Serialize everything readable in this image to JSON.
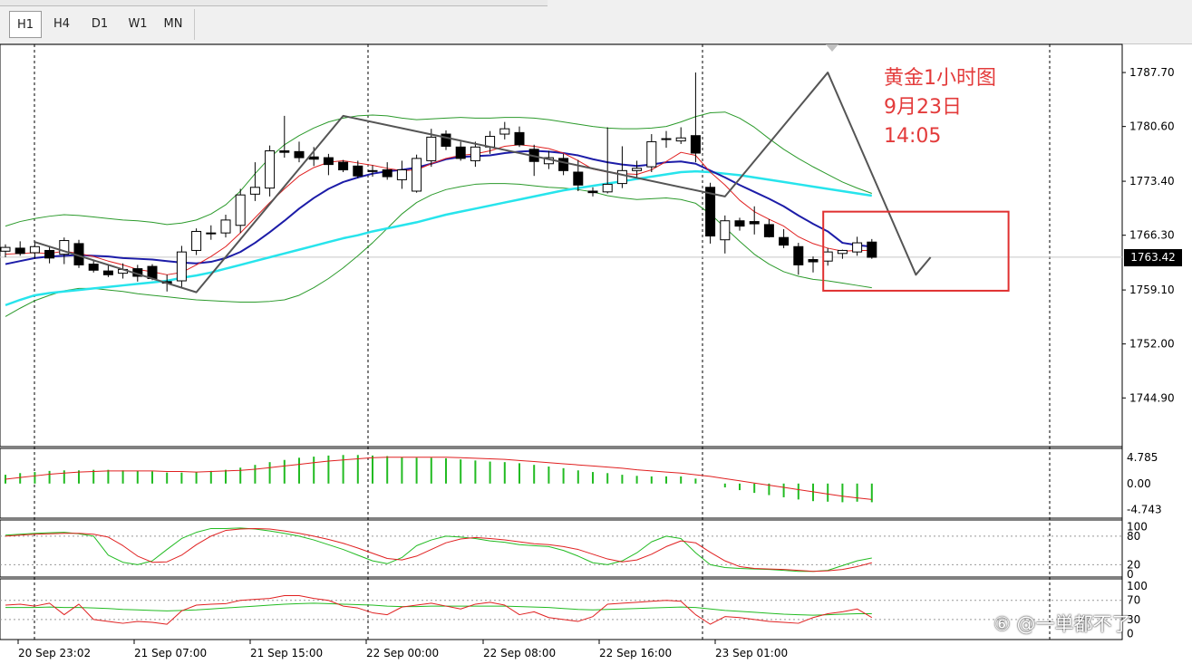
{
  "toolbar": {
    "timeframes": [
      "H1",
      "H4",
      "D1",
      "W1",
      "MN"
    ],
    "active_index": 0
  },
  "annotation": {
    "line1": "黄金1小时图",
    "line2": "9月23日",
    "line3": "14:05",
    "color": "#e33b3b"
  },
  "watermark": "⑥ @一単都不了",
  "colors": {
    "ma_fast": "#e02020",
    "ma_slow": "#1c1ca8",
    "ma_long": "#27e4ec",
    "bands": "#2b9a2b",
    "zigzag": "#555555",
    "macd_bar": "#22bb22",
    "box": "#e03030"
  },
  "chart_data": [
    {
      "type": "candlestick",
      "name": "main",
      "y_axis_ticks": [
        "1787.70",
        "1780.60",
        "1773.40",
        "1766.30",
        "1759.10",
        "1752.00",
        "1744.90"
      ],
      "ylim": [
        1738.5,
        1791.4
      ],
      "current_price": "1763.42",
      "x_labels": [
        "20 Sep 23:02",
        "21 Sep 07:00",
        "21 Sep 15:00",
        "22 Sep 00:00",
        "22 Sep 08:00",
        "22 Sep 16:00",
        "23 Sep 01:00"
      ],
      "ohlc": [
        [
          1764.2,
          1765.1,
          1763.4,
          1764.7
        ],
        [
          1764.6,
          1765.5,
          1763.6,
          1763.9
        ],
        [
          1764.0,
          1765.4,
          1763.2,
          1764.8
        ],
        [
          1764.3,
          1764.8,
          1762.6,
          1763.3
        ],
        [
          1763.8,
          1766.0,
          1762.5,
          1765.6
        ],
        [
          1765.2,
          1765.7,
          1762.0,
          1762.4
        ],
        [
          1762.5,
          1763.1,
          1761.4,
          1761.7
        ],
        [
          1761.6,
          1762.4,
          1760.8,
          1761.1
        ],
        [
          1761.3,
          1762.6,
          1760.6,
          1761.8
        ],
        [
          1761.9,
          1762.4,
          1760.2,
          1760.9
        ],
        [
          1762.2,
          1762.5,
          1760.4,
          1760.6
        ],
        [
          1760.2,
          1761.1,
          1758.9,
          1760.0
        ],
        [
          1760.3,
          1764.9,
          1759.3,
          1764.1
        ],
        [
          1764.3,
          1767.2,
          1763.7,
          1766.8
        ],
        [
          1766.5,
          1767.6,
          1765.7,
          1766.6
        ],
        [
          1766.6,
          1769.0,
          1766.0,
          1768.3
        ],
        [
          1767.6,
          1772.4,
          1766.6,
          1771.6
        ],
        [
          1771.7,
          1775.9,
          1770.8,
          1772.6
        ],
        [
          1772.5,
          1778.1,
          1771.4,
          1777.4
        ],
        [
          1777.4,
          1782.0,
          1776.5,
          1777.2
        ],
        [
          1777.3,
          1778.6,
          1775.9,
          1776.5
        ],
        [
          1776.6,
          1777.9,
          1775.4,
          1776.3
        ],
        [
          1776.5,
          1777.0,
          1774.2,
          1775.6
        ],
        [
          1775.9,
          1776.2,
          1774.6,
          1774.9
        ],
        [
          1775.4,
          1776.1,
          1773.8,
          1774.1
        ],
        [
          1774.7,
          1775.5,
          1774.0,
          1774.8
        ],
        [
          1774.9,
          1775.9,
          1773.6,
          1774.0
        ],
        [
          1773.6,
          1776.1,
          1772.4,
          1774.9
        ],
        [
          1772.1,
          1776.9,
          1771.9,
          1776.4
        ],
        [
          1776.1,
          1780.3,
          1775.3,
          1779.2
        ],
        [
          1779.6,
          1780.1,
          1777.5,
          1778.0
        ],
        [
          1777.9,
          1778.6,
          1776.1,
          1776.4
        ],
        [
          1776.1,
          1778.6,
          1775.3,
          1777.9
        ],
        [
          1777.9,
          1780.0,
          1777.0,
          1779.3
        ],
        [
          1779.6,
          1781.2,
          1778.9,
          1780.3
        ],
        [
          1779.8,
          1780.6,
          1777.9,
          1778.2
        ],
        [
          1777.6,
          1778.2,
          1774.1,
          1776.0
        ],
        [
          1775.7,
          1777.4,
          1775.0,
          1776.5
        ],
        [
          1776.4,
          1777.0,
          1774.2,
          1774.8
        ],
        [
          1774.6,
          1776.2,
          1772.1,
          1772.9
        ],
        [
          1772.1,
          1772.6,
          1771.4,
          1771.9
        ],
        [
          1772.0,
          1780.5,
          1771.8,
          1773.0
        ],
        [
          1773.1,
          1778.0,
          1772.5,
          1774.8
        ],
        [
          1774.8,
          1776.1,
          1773.9,
          1775.1
        ],
        [
          1775.3,
          1779.6,
          1774.6,
          1778.6
        ],
        [
          1778.9,
          1780.0,
          1777.8,
          1779.0
        ],
        [
          1778.7,
          1780.5,
          1778.3,
          1779.1
        ],
        [
          1779.4,
          1787.7,
          1775.9,
          1777.1
        ],
        [
          1772.6,
          1773.2,
          1765.2,
          1766.2
        ],
        [
          1765.7,
          1768.9,
          1763.9,
          1768.2
        ],
        [
          1768.2,
          1768.6,
          1766.9,
          1767.5
        ],
        [
          1768.1,
          1770.1,
          1766.4,
          1767.8
        ],
        [
          1767.7,
          1768.4,
          1766.0,
          1766.1
        ],
        [
          1766.0,
          1767.1,
          1764.6,
          1765.0
        ],
        [
          1764.8,
          1765.3,
          1761.1,
          1762.4
        ],
        [
          1763.1,
          1763.5,
          1761.4,
          1762.8
        ],
        [
          1762.9,
          1764.6,
          1762.3,
          1764.1
        ],
        [
          1763.9,
          1764.4,
          1763.2,
          1764.3
        ],
        [
          1764.1,
          1766.1,
          1763.6,
          1765.3
        ],
        [
          1765.4,
          1765.8,
          1763.2,
          1763.4
        ]
      ],
      "ma_fast": [
        1763.8,
        1763.9,
        1764.0,
        1763.9,
        1764.2,
        1763.9,
        1763.5,
        1762.9,
        1762.4,
        1761.8,
        1761.5,
        1761.1,
        1761.4,
        1762.4,
        1763.5,
        1764.8,
        1766.6,
        1768.6,
        1770.6,
        1772.4,
        1774.1,
        1775.2,
        1775.9,
        1776.1,
        1775.8,
        1775.5,
        1775.1,
        1774.8,
        1774.9,
        1775.7,
        1776.4,
        1776.8,
        1777.0,
        1777.4,
        1778.0,
        1778.2,
        1778.0,
        1777.7,
        1777.1,
        1776.1,
        1775.0,
        1774.6,
        1774.4,
        1774.3,
        1774.9,
        1776.0,
        1777.2,
        1776.8,
        1774.6,
        1772.9,
        1770.9,
        1769.4,
        1768.4,
        1767.5,
        1766.1,
        1765.2,
        1764.6,
        1764.2,
        1764.3,
        1764.3
      ],
      "ma_slow": [
        1762.5,
        1762.9,
        1763.3,
        1763.5,
        1763.6,
        1763.7,
        1763.6,
        1763.5,
        1763.3,
        1763.2,
        1763.1,
        1762.9,
        1762.7,
        1762.6,
        1762.8,
        1763.3,
        1764.1,
        1765.3,
        1766.7,
        1768.2,
        1769.8,
        1771.2,
        1772.4,
        1773.3,
        1773.9,
        1774.4,
        1774.7,
        1774.9,
        1775.2,
        1775.7,
        1776.3,
        1776.6,
        1776.7,
        1776.8,
        1777.1,
        1777.3,
        1777.4,
        1777.3,
        1777.1,
        1776.8,
        1776.3,
        1775.9,
        1775.6,
        1775.4,
        1775.6,
        1775.9,
        1776.0,
        1775.7,
        1774.8,
        1773.9,
        1772.9,
        1772.0,
        1771.1,
        1770.1,
        1768.9,
        1767.8,
        1766.8,
        1765.3,
        1765.0,
        1764.8
      ],
      "ma_long": [
        1757.1,
        1757.8,
        1758.4,
        1758.7,
        1758.9,
        1759.1,
        1759.3,
        1759.5,
        1759.7,
        1759.9,
        1760.1,
        1760.3,
        1760.7,
        1761.0,
        1761.4,
        1761.9,
        1762.4,
        1762.9,
        1763.4,
        1763.9,
        1764.4,
        1764.9,
        1765.4,
        1765.9,
        1766.3,
        1766.8,
        1767.2,
        1767.6,
        1768.0,
        1768.5,
        1769.0,
        1769.4,
        1769.8,
        1770.2,
        1770.6,
        1771.0,
        1771.4,
        1771.8,
        1772.2,
        1772.5,
        1772.8,
        1773.1,
        1773.4,
        1773.7,
        1774.0,
        1774.3,
        1774.6,
        1774.7,
        1774.6,
        1774.4,
        1774.2,
        1773.9,
        1773.6,
        1773.3,
        1773.0,
        1772.7,
        1772.4,
        1772.1,
        1771.8,
        1771.5
      ],
      "bb_upper": [
        1767.5,
        1768.1,
        1768.5,
        1768.8,
        1769.0,
        1768.9,
        1768.7,
        1768.5,
        1768.3,
        1768.2,
        1768.0,
        1767.7,
        1767.9,
        1768.3,
        1769.1,
        1770.3,
        1772.1,
        1774.4,
        1776.5,
        1778.2,
        1779.4,
        1780.4,
        1781.2,
        1781.7,
        1782.0,
        1782.1,
        1782.0,
        1781.7,
        1781.5,
        1781.6,
        1781.7,
        1781.8,
        1781.7,
        1781.7,
        1781.8,
        1781.8,
        1781.7,
        1781.5,
        1781.2,
        1780.9,
        1780.6,
        1780.4,
        1780.3,
        1780.3,
        1780.4,
        1780.6,
        1781.2,
        1781.9,
        1782.4,
        1782.5,
        1781.7,
        1780.5,
        1779.0,
        1777.6,
        1776.4,
        1775.3,
        1774.3,
        1773.3,
        1772.5,
        1771.8
      ],
      "bb_lower": [
        1755.6,
        1756.7,
        1757.7,
        1758.4,
        1759.0,
        1759.3,
        1759.3,
        1759.1,
        1758.9,
        1758.6,
        1758.4,
        1758.2,
        1758.0,
        1757.8,
        1757.7,
        1757.6,
        1757.5,
        1757.5,
        1757.6,
        1757.8,
        1758.4,
        1759.4,
        1760.6,
        1762.0,
        1763.6,
        1765.3,
        1767.2,
        1769.1,
        1770.6,
        1771.6,
        1772.3,
        1772.7,
        1773.0,
        1773.1,
        1773.1,
        1773.0,
        1772.8,
        1772.6,
        1772.5,
        1772.3,
        1772.0,
        1771.5,
        1771.2,
        1771.0,
        1771.1,
        1771.2,
        1771.0,
        1770.5,
        1769.1,
        1767.3,
        1765.5,
        1763.8,
        1762.5,
        1761.5,
        1760.9,
        1760.5,
        1760.3,
        1760.0,
        1759.7,
        1759.4
      ],
      "zigzag": [
        [
          2,
          1765.4
        ],
        [
          13,
          1758.8
        ],
        [
          23,
          1782.0
        ],
        [
          49,
          1771.4
        ],
        [
          56,
          1787.7
        ],
        [
          62,
          1761.1
        ],
        [
          63,
          1763.4
        ]
      ],
      "box": {
        "from_bar": 56,
        "to_bar": 68,
        "price_low": 1759.0,
        "price_high": 1769.4
      }
    },
    {
      "type": "bar",
      "name": "macd",
      "y_axis_ticks": [
        "4.785",
        "0.00",
        "-4.743"
      ],
      "ylim": [
        -6.3,
        6.4
      ],
      "values": [
        1.6,
        1.9,
        2.1,
        2.3,
        2.4,
        2.4,
        2.5,
        2.5,
        2.4,
        2.3,
        2.2,
        2.0,
        2.0,
        2.1,
        2.3,
        2.5,
        2.9,
        3.4,
        3.9,
        4.3,
        4.7,
        4.9,
        5.1,
        5.2,
        5.2,
        5.1,
        5.0,
        4.8,
        4.7,
        4.7,
        4.6,
        4.4,
        4.2,
        4.0,
        3.9,
        3.7,
        3.4,
        3.1,
        2.8,
        2.4,
        2.1,
        1.9,
        1.6,
        1.4,
        1.3,
        1.3,
        1.3,
        0.9,
        0.0,
        -0.7,
        -1.2,
        -1.7,
        -2.1,
        -2.5,
        -2.9,
        -3.2,
        -3.3,
        -3.4,
        -3.3,
        -3.4
      ],
      "signal": [
        0.8,
        1.1,
        1.4,
        1.7,
        1.9,
        2.1,
        2.2,
        2.3,
        2.3,
        2.3,
        2.3,
        2.2,
        2.2,
        2.1,
        2.2,
        2.3,
        2.4,
        2.6,
        2.9,
        3.2,
        3.5,
        3.8,
        4.1,
        4.3,
        4.5,
        4.7,
        4.8,
        4.8,
        4.8,
        4.8,
        4.8,
        4.7,
        4.6,
        4.5,
        4.4,
        4.2,
        4.0,
        3.8,
        3.6,
        3.4,
        3.2,
        3.0,
        2.8,
        2.5,
        2.3,
        2.1,
        1.9,
        1.6,
        1.3,
        0.9,
        0.5,
        0.1,
        -0.3,
        -0.7,
        -1.1,
        -1.5,
        -1.9,
        -2.3,
        -2.6,
        -2.9
      ]
    },
    {
      "type": "line",
      "name": "stochastic",
      "y_axis_ticks": [
        "100",
        "80",
        "20",
        "0"
      ],
      "ylim": [
        0,
        100
      ],
      "main": [
        82,
        84,
        86,
        87,
        88,
        85,
        80,
        40,
        25,
        20,
        28,
        52,
        75,
        88,
        96,
        96,
        97,
        95,
        91,
        86,
        80,
        72,
        62,
        52,
        40,
        28,
        22,
        35,
        60,
        72,
        80,
        78,
        75,
        70,
        67,
        62,
        60,
        58,
        50,
        38,
        24,
        20,
        28,
        45,
        68,
        80,
        75,
        45,
        20,
        14,
        12,
        11,
        10,
        8,
        6,
        6,
        8,
        18,
        28,
        34
      ],
      "signal": [
        80,
        82,
        84,
        85,
        86,
        86,
        84,
        78,
        60,
        38,
        25,
        26,
        40,
        62,
        80,
        92,
        95,
        96,
        95,
        91,
        86,
        80,
        73,
        65,
        55,
        44,
        33,
        30,
        38,
        52,
        66,
        74,
        77,
        75,
        72,
        68,
        64,
        62,
        58,
        52,
        42,
        32,
        26,
        30,
        42,
        58,
        70,
        66,
        46,
        28,
        16,
        12,
        11,
        10,
        8,
        6,
        7,
        10,
        16,
        24
      ]
    },
    {
      "type": "line",
      "name": "rsi",
      "y_axis_ticks": [
        "100",
        "70",
        "30",
        "0"
      ],
      "ylim": [
        0,
        100
      ],
      "fast": [
        60,
        62,
        58,
        64,
        40,
        62,
        30,
        26,
        22,
        26,
        24,
        20,
        48,
        60,
        62,
        63,
        70,
        72,
        74,
        80,
        80,
        74,
        70,
        58,
        54,
        44,
        40,
        56,
        60,
        64,
        58,
        52,
        62,
        66,
        60,
        40,
        46,
        34,
        30,
        26,
        36,
        62,
        64,
        66,
        68,
        70,
        68,
        40,
        20,
        36,
        34,
        30,
        26,
        24,
        22,
        34,
        42,
        46,
        52,
        34
      ],
      "slow": [
        55,
        55,
        55,
        56,
        55,
        55,
        54,
        53,
        51,
        50,
        49,
        48,
        49,
        50,
        52,
        54,
        56,
        58,
        60,
        62,
        63,
        64,
        63,
        62,
        61,
        60,
        58,
        57,
        57,
        58,
        58,
        58,
        58,
        58,
        58,
        57,
        56,
        55,
        53,
        51,
        50,
        51,
        52,
        53,
        54,
        55,
        56,
        55,
        52,
        49,
        47,
        45,
        43,
        41,
        40,
        39,
        40,
        41,
        42,
        42
      ]
    }
  ]
}
